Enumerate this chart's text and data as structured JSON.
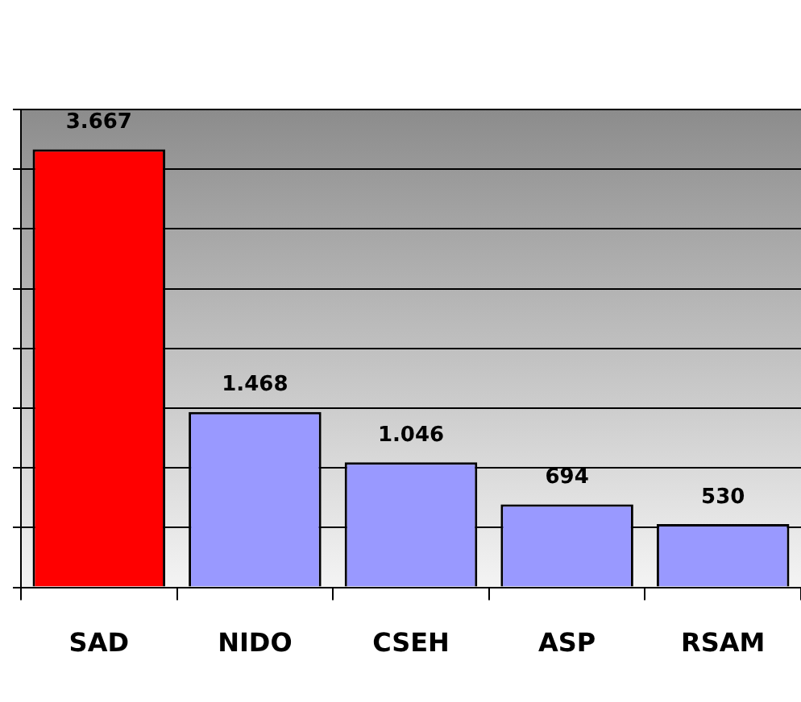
{
  "chart_data": {
    "type": "bar",
    "categories": [
      "SAD",
      "NIDO",
      "CSEH",
      "ASP",
      "RSAM"
    ],
    "values": [
      3667,
      1468,
      1046,
      694,
      530
    ],
    "colors": [
      "#ff0000",
      "#9999ff",
      "#9999ff",
      "#9999ff",
      "#9999ff"
    ],
    "value_labels": [
      "3.667",
      "1.468",
      "1.046",
      "694",
      "530"
    ],
    "grid": "y",
    "tick_labels": "x",
    "legend": false
  }
}
